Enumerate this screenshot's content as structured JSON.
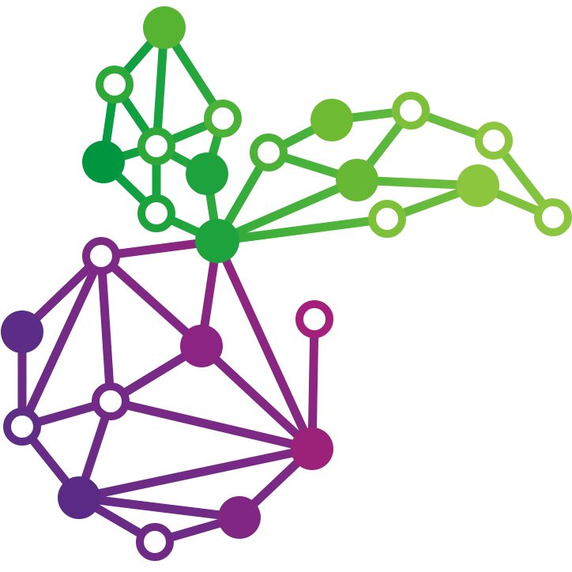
{
  "logo": {
    "description_text": "",
    "colors": {
      "green_dark": "#009a44",
      "green_mid": "#3aae3a",
      "green_light": "#8cc63f",
      "purple_dark": "#5b2d86",
      "purple_mid": "#7a2a86",
      "magenta": "#a3217a",
      "hollow_fill": "#ffffff"
    }
  }
}
